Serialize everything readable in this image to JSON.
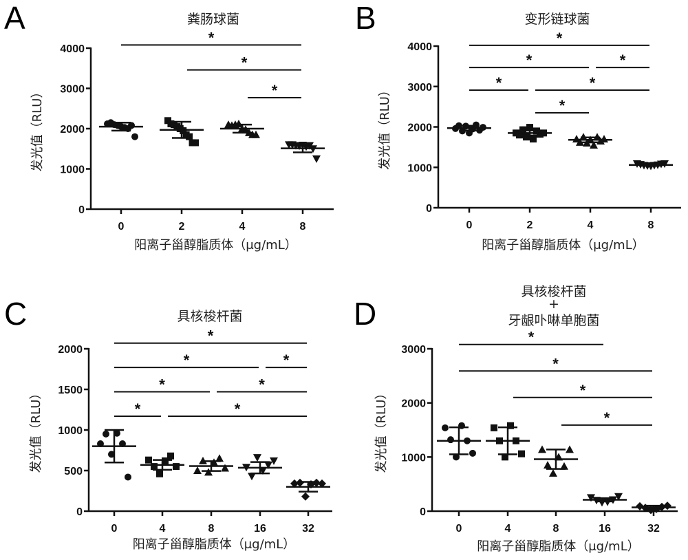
{
  "chart_data": [
    {
      "type": "scatter",
      "panel": "A",
      "title": [
        "粪肠球菌"
      ],
      "xlabel": "阳离子甾醇脂质体（μg/mL）",
      "ylabel": "发光值（RLU）",
      "categories": [
        "0",
        "2",
        "4",
        "8"
      ],
      "ylim": [
        0,
        4000
      ],
      "yticks": [
        "0",
        "1000",
        "2000",
        "3000",
        "4000"
      ],
      "groups": [
        {
          "marker": "circle",
          "mean": 2050,
          "sd": 100,
          "points": [
            2120,
            2150,
            2100,
            2080,
            2050,
            2030,
            2000,
            2080,
            1800
          ]
        },
        {
          "marker": "square",
          "mean": 1970,
          "sd": 200,
          "points": [
            2200,
            2120,
            2100,
            2050,
            2000,
            1950,
            1850,
            1800,
            1650,
            1650
          ]
        },
        {
          "marker": "triangle-up",
          "mean": 2000,
          "sd": 100,
          "points": [
            2100,
            2080,
            2100,
            2120,
            2000,
            1980,
            1900,
            1850,
            1850
          ]
        },
        {
          "marker": "triangle-down",
          "mean": 1510,
          "sd": 100,
          "points": [
            1600,
            1600,
            1580,
            1570,
            1590,
            1550,
            1580,
            1500,
            1250
          ]
        }
      ],
      "significance": [
        {
          "from": 0,
          "to": 3,
          "y": 4080,
          "label": "*"
        },
        {
          "from": 1,
          "to": 3,
          "y": 3460,
          "label": "*"
        },
        {
          "from": 2,
          "to": 3,
          "y": 2770,
          "label": "*"
        }
      ]
    },
    {
      "type": "scatter",
      "panel": "B",
      "title": [
        "变形链球菌"
      ],
      "xlabel": "阳离子甾醇脂质体（μg/mL）",
      "ylabel": "发光值（RLU）",
      "categories": [
        "0",
        "2",
        "4",
        "8"
      ],
      "ylim": [
        0,
        4000
      ],
      "yticks": [
        "0",
        "1000",
        "2000",
        "3000",
        "4000"
      ],
      "groups": [
        {
          "marker": "circle",
          "mean": 1970,
          "sd": 60,
          "points": [
            1960,
            2030,
            1900,
            2020,
            1850,
            1950,
            2050,
            1920,
            1990
          ]
        },
        {
          "marker": "square",
          "mean": 1850,
          "sd": 60,
          "points": [
            1850,
            1800,
            1930,
            1750,
            1990,
            1700,
            1900,
            1820,
            1850
          ]
        },
        {
          "marker": "triangle-up",
          "mean": 1680,
          "sd": 60,
          "points": [
            1700,
            1620,
            1750,
            1600,
            1680,
            1550,
            1750,
            1650,
            1700
          ]
        },
        {
          "marker": "triangle-down",
          "mean": 1060,
          "sd": 20,
          "points": [
            1090,
            1070,
            1050,
            1040,
            1030,
            1050,
            1060,
            1080,
            1090
          ]
        }
      ],
      "significance": [
        {
          "from": 0,
          "to": 3,
          "y": 4020,
          "label": "*"
        },
        {
          "from": 0,
          "to": 2,
          "y": 3470,
          "label": "*"
        },
        {
          "from": 2,
          "to": 3,
          "y": 3470,
          "label": "*"
        },
        {
          "from": 0,
          "to": 1,
          "y": 2910,
          "label": "*"
        },
        {
          "from": 1,
          "to": 3,
          "y": 2910,
          "label": "*"
        },
        {
          "from": 1,
          "to": 2,
          "y": 2350,
          "label": "*"
        }
      ]
    },
    {
      "type": "scatter",
      "panel": "C",
      "title": [
        "具核梭杆菌"
      ],
      "xlabel": "阳离子甾醇脂质体（μg/mL）",
      "ylabel": "发光值（RLU）",
      "categories": [
        "0",
        "4",
        "8",
        "16",
        "32"
      ],
      "ylim": [
        0,
        2000
      ],
      "yticks": [
        "0",
        "500",
        "1000",
        "1500",
        "2000"
      ],
      "groups": [
        {
          "marker": "circle",
          "mean": 800,
          "sd": 200,
          "points": [
            830,
            950,
            700,
            960,
            830,
            420
          ]
        },
        {
          "marker": "square",
          "mean": 570,
          "sd": 60,
          "points": [
            630,
            550,
            460,
            620,
            680,
            550
          ]
        },
        {
          "marker": "triangle-up",
          "mean": 555,
          "sd": 60,
          "points": [
            500,
            620,
            480,
            600,
            650,
            530
          ]
        },
        {
          "marker": "triangle-down",
          "mean": 535,
          "sd": 70,
          "points": [
            540,
            430,
            660,
            500,
            570,
            620
          ]
        },
        {
          "marker": "diamond",
          "mean": 300,
          "sd": 60,
          "points": [
            340,
            350,
            180,
            330,
            350,
            340
          ]
        }
      ],
      "significance": [
        {
          "from": 0,
          "to": 4,
          "y": 2070,
          "label": "*"
        },
        {
          "from": 0,
          "to": 3,
          "y": 1770,
          "label": "*"
        },
        {
          "from": 3,
          "to": 4,
          "y": 1770,
          "label": "*"
        },
        {
          "from": 0,
          "to": 2,
          "y": 1470,
          "label": "*"
        },
        {
          "from": 2,
          "to": 4,
          "y": 1470,
          "label": "*"
        },
        {
          "from": 0,
          "to": 1,
          "y": 1170,
          "label": "*"
        },
        {
          "from": 1,
          "to": 4,
          "y": 1170,
          "label": "*"
        }
      ]
    },
    {
      "type": "scatter",
      "panel": "D",
      "title": [
        "具核梭杆菌",
        "+",
        "牙龈卟啉单胞菌"
      ],
      "xlabel": "阳离子甾醇脂质体（μg/mL）",
      "ylabel": "发光值（RLU）",
      "categories": [
        "0",
        "4",
        "8",
        "16",
        "32"
      ],
      "ylim": [
        0,
        3000
      ],
      "yticks": [
        "0",
        "1000",
        "2000",
        "3000"
      ],
      "groups": [
        {
          "marker": "circle",
          "mean": 1300,
          "sd": 250,
          "points": [
            1540,
            1320,
            1000,
            1580,
            1300,
            1070
          ]
        },
        {
          "marker": "square",
          "mean": 1300,
          "sd": 250,
          "points": [
            1540,
            1300,
            1000,
            1580,
            1300,
            1060
          ]
        },
        {
          "marker": "triangle-up",
          "mean": 960,
          "sd": 180,
          "points": [
            1140,
            850,
            700,
            1000,
            830,
            1140
          ]
        },
        {
          "marker": "triangle-down",
          "mean": 210,
          "sd": 30,
          "points": [
            250,
            200,
            160,
            170,
            210,
            270
          ]
        },
        {
          "marker": "diamond",
          "mean": 70,
          "sd": 30,
          "points": [
            90,
            60,
            20,
            40,
            80,
            100
          ]
        }
      ],
      "significance": [
        {
          "from": 0,
          "to": 3,
          "y": 3080,
          "label": "*"
        },
        {
          "from": 0,
          "to": 4,
          "y": 2590,
          "label": "*"
        },
        {
          "from": 1,
          "to": 4,
          "y": 2100,
          "label": "*"
        },
        {
          "from": 2,
          "to": 4,
          "y": 1590,
          "label": "*"
        }
      ]
    }
  ]
}
